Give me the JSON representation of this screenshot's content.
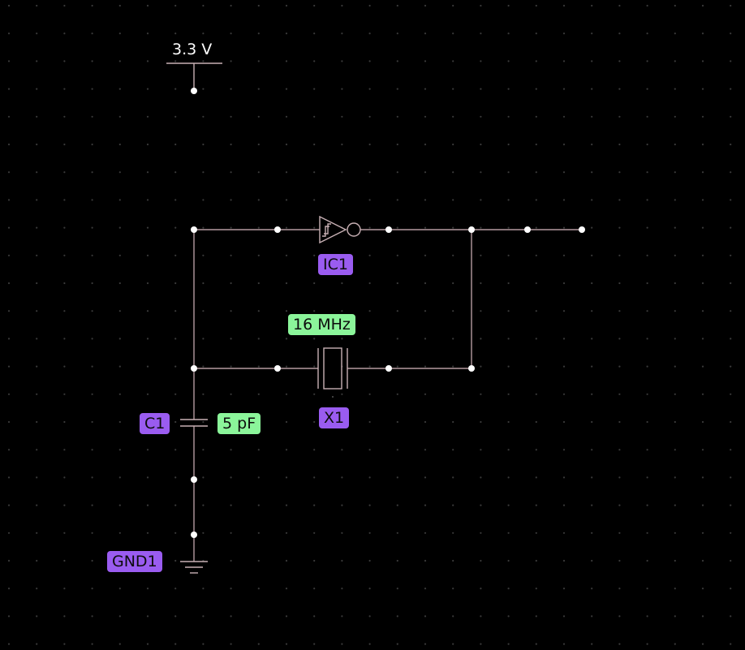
{
  "supply": {
    "label": "3.3 V"
  },
  "components": {
    "inverter": {
      "ref": "IC1"
    },
    "crystal": {
      "ref": "X1",
      "value": "16 MHz"
    },
    "capacitor": {
      "ref": "C1",
      "value": "5 pF"
    },
    "ground": {
      "ref": "GND1"
    }
  },
  "colors": {
    "background": "#000000",
    "wire": "#b59ba0",
    "ref_tag": "#9a5cf0",
    "value_tag": "#8bf59a",
    "node": "#ffffff"
  }
}
